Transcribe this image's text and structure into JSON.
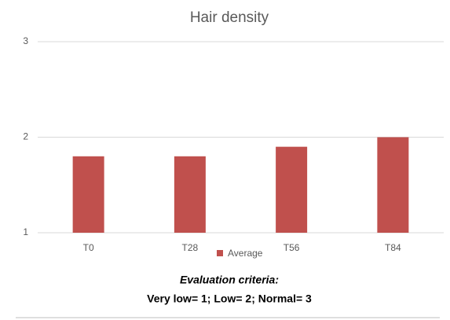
{
  "chart_data": {
    "type": "bar",
    "title": "Hair density",
    "categories": [
      "T0",
      "T28",
      "T56",
      "T84"
    ],
    "series": [
      {
        "name": "Average",
        "color": "#c0504d",
        "values": [
          1.8,
          1.8,
          1.9,
          2.0
        ]
      }
    ],
    "ylim": [
      1,
      3
    ],
    "yticks": [
      1,
      2,
      3
    ],
    "grid": true,
    "legend": "bottom",
    "annotations": [
      "Evaluation criteria:",
      "Very low= 1;  Low= 2; Normal= 3"
    ]
  }
}
